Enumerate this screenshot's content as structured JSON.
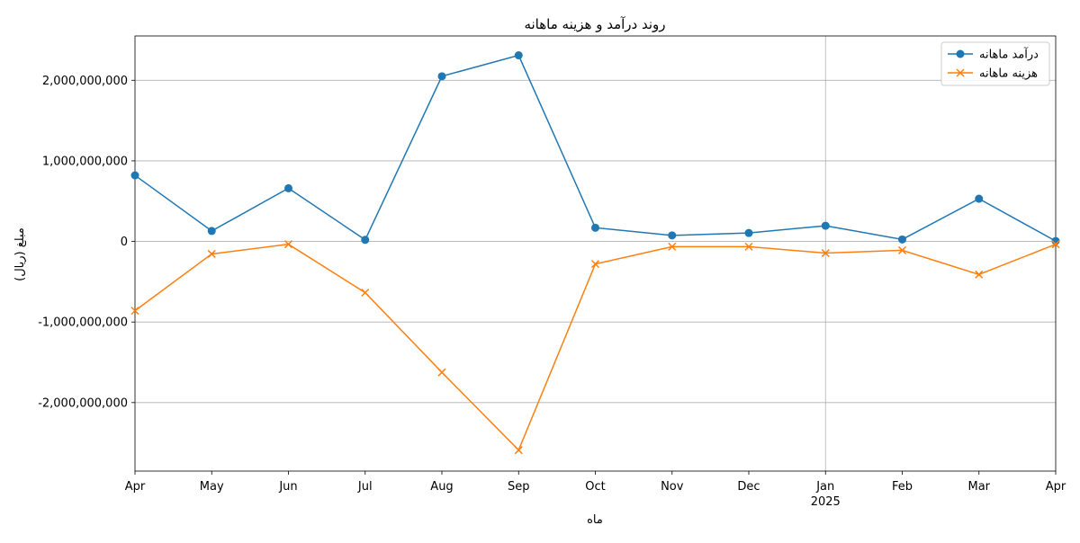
{
  "chart_data": {
    "type": "line",
    "title": "روند درآمد و هزینه ماهانه",
    "xlabel": "ماه",
    "ylabel": "مبلغ (ریال)",
    "categories": [
      "Apr",
      "May",
      "Jun",
      "Jul",
      "Aug",
      "Sep",
      "Oct",
      "Nov",
      "Dec",
      "Jan",
      "Feb",
      "Mar",
      "Apr"
    ],
    "year_label": "2025",
    "ylim": [
      -2850000000,
      2550000000
    ],
    "yticks": [
      -2000000000,
      -1000000000,
      0,
      1000000000,
      2000000000
    ],
    "ytick_labels": [
      "-2,000,000,000",
      "-1,000,000,000",
      "0",
      "1,000,000,000",
      "2,000,000,000"
    ],
    "grid": "y-major and x-year-boundary",
    "legend_position": "top-right",
    "series": [
      {
        "name": "درآمد ماهانه",
        "color": "#1f77b4",
        "marker": "circle",
        "values": [
          820000000,
          130000000,
          660000000,
          20000000,
          2050000000,
          2310000000,
          170000000,
          75000000,
          105000000,
          195000000,
          25000000,
          530000000,
          5000000
        ]
      },
      {
        "name": "هزینه ماهانه",
        "color": "#ff7f0e",
        "marker": "x",
        "values": [
          -860000000,
          -155000000,
          -35000000,
          -635000000,
          -1625000000,
          -2590000000,
          -280000000,
          -65000000,
          -65000000,
          -145000000,
          -110000000,
          -410000000,
          -35000000
        ]
      }
    ]
  }
}
